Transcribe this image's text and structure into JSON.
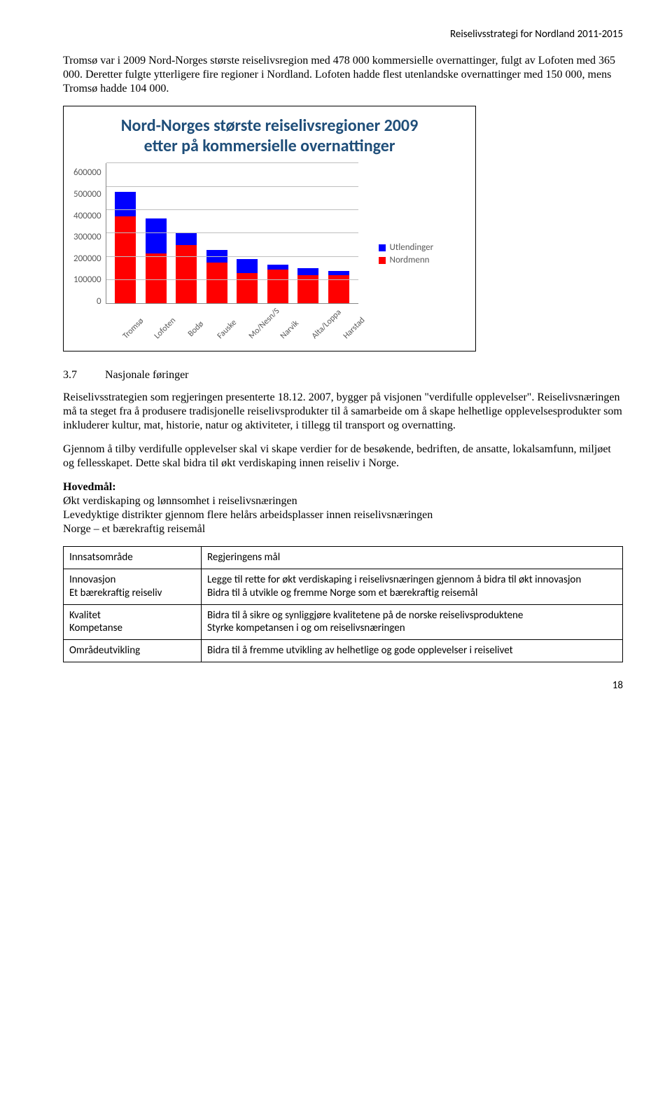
{
  "header": {
    "right": "Reiselivsstrategi for Nordland 2011-2015"
  },
  "paragraphs": {
    "p1": "Tromsø var i 2009 Nord-Norges største reiselivsregion med 478 000 kommersielle overnattinger, fulgt av Lofoten med 365 000. Deretter fulgte ytterligere fire regioner i Nordland. Lofoten hadde flest utenlandske overnattinger med 150 000, mens Tromsø hadde 104 000."
  },
  "chart": {
    "title_line1": "Nord-Norges største reiselivsregioner 2009",
    "title_line2": "etter på kommersielle overnattinger",
    "ylim_max": 600000,
    "y_ticks": [
      "600000",
      "500000",
      "400000",
      "300000",
      "200000",
      "100000",
      "0"
    ],
    "grid_color": "#bfbfbf",
    "bg_color": "#ffffff",
    "categories": [
      "Tromsø",
      "Lofoten",
      "Bodø",
      "Fauske",
      "Mo/Nesn/S",
      "Narvik",
      "Alta/Loppa",
      "Harstad"
    ],
    "series": [
      {
        "name": "Utlendinger",
        "color": "#0000ff"
      },
      {
        "name": "Nordmenn",
        "color": "#ff0000"
      }
    ],
    "utlendinger": [
      104000,
      150000,
      50000,
      55000,
      60000,
      20000,
      30000,
      20000
    ],
    "nordmenn": [
      374000,
      215000,
      250000,
      175000,
      130000,
      145000,
      120000,
      120000
    ]
  },
  "section37": {
    "num": "3.7",
    "title": "Nasjonale føringer",
    "p1": "Reiselivsstrategien som regjeringen presenterte 18.12. 2007, bygger på visjonen \"verdifulle opplevelser\". Reiselivsnæringen må ta steget fra å produsere tradisjonelle reiselivsprodukter til å samarbeide om å skape helhetlige opplevelsesprodukter som inkluderer kultur, mat, historie, natur og aktiviteter, i tillegg til transport og overnatting.",
    "p2": "Gjennom å tilby verdifulle opplevelser skal vi skape verdier for de besøkende, bedriften, de ansatte, lokalsamfunn, miljøet og fellesskapet. Dette skal bidra til økt verdiskaping innen reiseliv i Norge.",
    "hovedmal_label": "Hovedmål:",
    "hovedmal_l1": "Økt verdiskaping og lønnsomhet i reiselivsnæringen",
    "hovedmal_l2": "Levedyktige distrikter gjennom flere helårs arbeidsplasser innen reiselivsnæringen",
    "hovedmal_l3": "Norge – et bærekraftig reisemål"
  },
  "table": {
    "header": [
      "Innsatsområde",
      "Regjeringens mål"
    ],
    "rows": [
      [
        "Innovasjon",
        "Legge til rette for økt verdiskaping i reiselivsnæringen gjennom å bidra til økt innovasjon"
      ],
      [
        "Et bærekraftig reiseliv",
        "Bidra til å utvikle og fremme Norge som et bærekraftig reisemål"
      ],
      [
        "Kvalitet",
        "Bidra til å sikre og synliggjøre kvalitetene på de norske reiselivsproduktene"
      ],
      [
        "Kompetanse",
        "Styrke kompetansen i og om reiselivsnæringen"
      ],
      [
        "Områdeutvikling",
        "Bidra til å fremme utvikling av helhetlige og gode opplevelser i reiselivet"
      ]
    ],
    "row_groups": [
      [
        0,
        1
      ],
      [
        2,
        3
      ],
      [
        4
      ]
    ]
  },
  "page_number": "18"
}
